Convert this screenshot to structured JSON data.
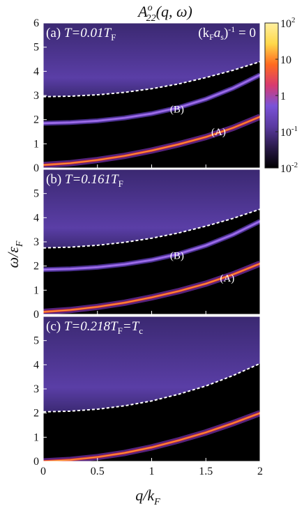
{
  "chart_data": {
    "type": "heatmap",
    "title_parts": {
      "base": "A",
      "sup": "o",
      "sub": "22",
      "args": "(q, ω)"
    },
    "xlabel": {
      "base": "q/k",
      "sub": "F"
    },
    "ylabel": {
      "base": "ω/ε",
      "sub": "F"
    },
    "x_ticks": [
      "0",
      "0.5",
      "1",
      "1.5",
      "2"
    ],
    "xlim": [
      0,
      2
    ],
    "colorbar": {
      "scale": "log",
      "range": [
        0.01,
        100
      ],
      "tick_labels": [
        {
          "value": 100,
          "base": "10",
          "exp": "2"
        },
        {
          "value": 10,
          "base": "10",
          "exp": ""
        },
        {
          "value": 1,
          "base": "1",
          "exp": ""
        },
        {
          "value": 0.1,
          "base": "10",
          "exp": "-1"
        },
        {
          "value": 0.01,
          "base": "10",
          "exp": "-2"
        }
      ],
      "colors": [
        "#000000",
        "#2a1a4a",
        "#5a3aa0",
        "#7a52d8",
        "#d83a70",
        "#ff6a20",
        "#ffd84a",
        "#fff0a0"
      ]
    },
    "panels": [
      {
        "label_prefix": "(a) ",
        "label_T": "T=0.01T",
        "label_sub": "F",
        "interaction_label": {
          "pre": "(k",
          "sub1": "F",
          "mid": "a",
          "sub2": "s",
          "post": ")",
          "exp": "-1",
          "tail": " = 0"
        },
        "y_ticks": [
          "0",
          "1",
          "2",
          "3",
          "4",
          "5",
          "6"
        ],
        "ylim": [
          0,
          6
        ],
        "continuum_edge": {
          "x": [
            0,
            0.25,
            0.5,
            0.75,
            1.0,
            1.25,
            1.5,
            1.75,
            2.0
          ],
          "y": [
            2.95,
            2.97,
            3.03,
            3.13,
            3.28,
            3.48,
            3.74,
            4.04,
            4.4
          ]
        },
        "curves": [
          {
            "name": "(A)",
            "label_at": {
              "x": 1.55,
              "y": 1.35
            },
            "x": [
              0,
              0.25,
              0.5,
              0.75,
              1.0,
              1.25,
              1.5,
              1.75,
              2.0
            ],
            "y": [
              0.12,
              0.2,
              0.33,
              0.5,
              0.72,
              0.98,
              1.28,
              1.66,
              2.12
            ]
          },
          {
            "name": "(B)",
            "label_at": {
              "x": 1.17,
              "y": 2.3
            },
            "x": [
              0,
              0.25,
              0.5,
              0.75,
              1.0,
              1.25,
              1.5,
              1.75,
              2.0
            ],
            "y": [
              1.85,
              1.88,
              1.95,
              2.07,
              2.25,
              2.5,
              2.85,
              3.3,
              3.85
            ]
          }
        ]
      },
      {
        "label_prefix": "(b) ",
        "label_T": "T=0.161T",
        "label_sub": "F",
        "y_ticks": [
          "0",
          "1",
          "2",
          "3",
          "4",
          "5"
        ],
        "ylim": [
          0,
          6
        ],
        "continuum_edge": {
          "x": [
            0,
            0.25,
            0.5,
            0.75,
            1.0,
            1.25,
            1.5,
            1.75,
            2.0
          ],
          "y": [
            2.75,
            2.78,
            2.86,
            2.98,
            3.15,
            3.37,
            3.65,
            3.97,
            4.35
          ]
        },
        "curves": [
          {
            "name": "(A)",
            "label_at": {
              "x": 1.63,
              "y": 1.35
            },
            "x": [
              0,
              0.25,
              0.5,
              0.75,
              1.0,
              1.25,
              1.5,
              1.75,
              2.0
            ],
            "y": [
              0.1,
              0.18,
              0.31,
              0.48,
              0.7,
              0.96,
              1.27,
              1.65,
              2.1
            ]
          },
          {
            "name": "(B)",
            "label_at": {
              "x": 1.17,
              "y": 2.3
            },
            "x": [
              0,
              0.25,
              0.5,
              0.75,
              1.0,
              1.25,
              1.5,
              1.75,
              2.0
            ],
            "y": [
              1.85,
              1.88,
              1.95,
              2.07,
              2.25,
              2.5,
              2.85,
              3.3,
              3.85
            ]
          }
        ]
      },
      {
        "label_prefix": "(c) ",
        "label_T": "T=0.218T",
        "label_sub": "F",
        "label_tail": "=T",
        "label_tail_sub": "c",
        "y_ticks": [
          "0",
          "1",
          "2",
          "3",
          "4",
          "5"
        ],
        "ylim": [
          0,
          6
        ],
        "continuum_edge": {
          "x": [
            0,
            0.25,
            0.5,
            0.75,
            1.0,
            1.25,
            1.5,
            1.75,
            2.0
          ],
          "y": [
            2.05,
            2.08,
            2.16,
            2.3,
            2.5,
            2.78,
            3.12,
            3.55,
            4.05
          ]
        },
        "curves": [
          {
            "name": "",
            "x": [
              0,
              0.25,
              0.5,
              0.75,
              1.0,
              1.25,
              1.5,
              1.75,
              2.0
            ],
            "y": [
              0.0,
              0.06,
              0.18,
              0.35,
              0.58,
              0.87,
              1.2,
              1.58,
              2.0
            ]
          }
        ]
      }
    ]
  }
}
